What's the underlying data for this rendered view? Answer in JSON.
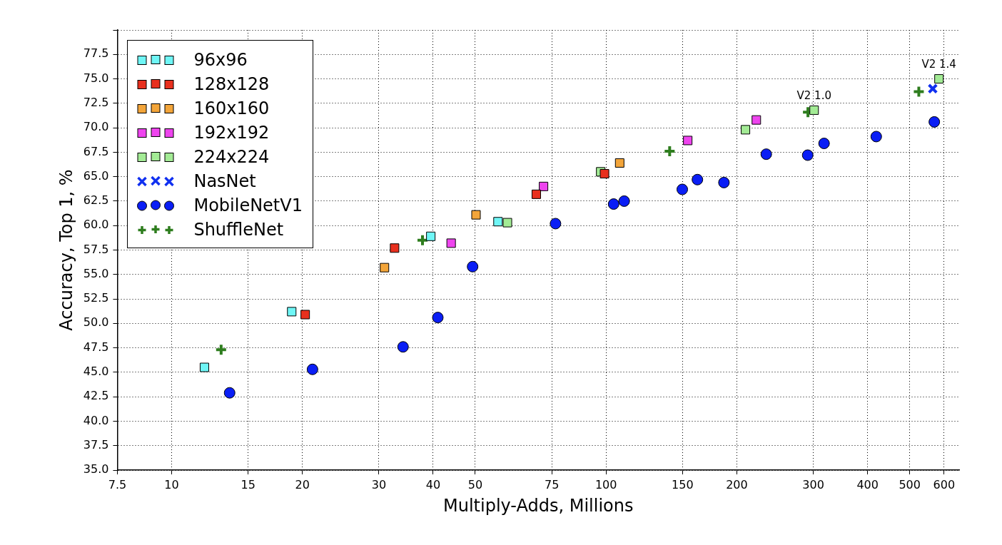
{
  "chart_data": {
    "type": "scatter",
    "xlabel": "Multiply-Adds, Millions",
    "ylabel": "Accuracy, Top 1, %",
    "log": "x",
    "xlim": [
      7.5,
      650
    ],
    "xticks": [
      7.5,
      10,
      15,
      20,
      30,
      40,
      50,
      75,
      100,
      150,
      200,
      300,
      400,
      500,
      600
    ],
    "ylim": [
      35,
      80
    ],
    "yticks": [
      {
        "value": 35,
        "label": "35.0"
      },
      {
        "value": 37.5,
        "label": "37.5"
      },
      {
        "value": 40,
        "label": "40.0"
      },
      {
        "value": 42.5,
        "label": "42.5"
      },
      {
        "value": 45,
        "label": "45.0"
      },
      {
        "value": 47.5,
        "label": "47.5"
      },
      {
        "value": 50,
        "label": "50.0"
      },
      {
        "value": 52.5,
        "label": "52.5"
      },
      {
        "value": 55,
        "label": "55.0"
      },
      {
        "value": 57.5,
        "label": "57.5"
      },
      {
        "value": 60,
        "label": "60.0"
      },
      {
        "value": 62.5,
        "label": "62.5"
      },
      {
        "value": 65,
        "label": "65.0"
      },
      {
        "value": 67.5,
        "label": "67.5"
      },
      {
        "value": 70,
        "label": "70.0"
      },
      {
        "value": 72.5,
        "label": "72.5"
      },
      {
        "value": 75,
        "label": "75.0"
      },
      {
        "value": 77.5,
        "label": "77.5"
      },
      {
        "value": 80,
        "label": null
      }
    ],
    "grid": true,
    "legend": "top left",
    "series": [
      {
        "name": "96x96",
        "color": "#6ff6f6",
        "marker": "square",
        "x": [
          11.9,
          18.9,
          39.5,
          56.4
        ],
        "values": [
          45.5,
          51.2,
          58.9,
          60.4
        ]
      },
      {
        "name": "128x128",
        "color": "#e8301e",
        "marker": "square",
        "x": [
          20.3,
          32.6,
          69.1,
          99.2
        ],
        "values": [
          50.9,
          57.7,
          63.2,
          65.3
        ]
      },
      {
        "name": "160x160",
        "color": "#f3a53a",
        "marker": "square",
        "x": [
          30.9,
          50.2,
          107.5
        ],
        "values": [
          55.7,
          61.1,
          66.4
        ]
      },
      {
        "name": "192x192",
        "color": "#ee44ee",
        "marker": "square",
        "x": [
          44.0,
          71.8,
          154.2,
          221.8
        ],
        "values": [
          58.2,
          64.0,
          68.7,
          70.8
        ]
      },
      {
        "name": "224x224",
        "color": "#a3eb95",
        "marker": "square",
        "x": [
          59.3,
          97.2,
          209.4,
          301.3,
          584
        ],
        "values": [
          60.3,
          65.5,
          69.8,
          71.8,
          75.0
        ]
      },
      {
        "name": "NasNet",
        "color": "#1030f0",
        "marker": "x",
        "x": [
          565
        ],
        "values": [
          74.0
        ]
      },
      {
        "name": "MobileNetV1",
        "color": "#0a1ef5",
        "marker": "circle",
        "x": [
          13.6,
          21.1,
          34.1,
          41.0,
          49.3,
          76.5,
          104.1,
          110.1,
          149.8,
          162.3,
          186.8,
          233.8,
          291.2,
          317.6,
          418.8,
          569.7
        ],
        "values": [
          42.9,
          45.3,
          47.6,
          50.6,
          55.8,
          60.2,
          62.2,
          62.5,
          63.7,
          64.7,
          64.4,
          67.3,
          67.2,
          68.4,
          69.1,
          70.6
        ]
      },
      {
        "name": "ShuffleNet",
        "color": "#2e7d1e",
        "marker": "cross",
        "x": [
          13.0,
          37.8,
          140.1,
          291.6,
          524.8
        ],
        "values": [
          47.3,
          58.5,
          67.6,
          71.6,
          73.7
        ]
      }
    ],
    "annotations": [
      {
        "text": "V2 1.0",
        "x": 301.3,
        "y": 71.8
      },
      {
        "text": "V2 1.4",
        "x": 584,
        "y": 75.0
      }
    ]
  }
}
